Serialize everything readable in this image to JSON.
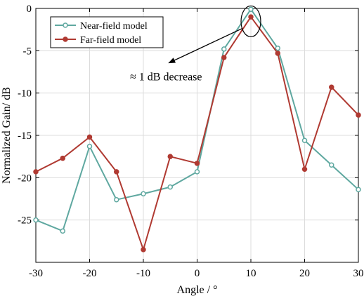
{
  "chart_data": {
    "type": "line",
    "title": "",
    "xlabel": "Angle / °",
    "ylabel": "Normalized Gain/ dB",
    "xlim": [
      -30,
      30
    ],
    "ylim": [
      -30,
      0
    ],
    "xticks": [
      -30,
      -20,
      -10,
      0,
      10,
      20,
      30
    ],
    "yticks": [
      0,
      -5,
      -10,
      -15,
      -20,
      -25
    ],
    "xtick_labels": [
      "-30",
      "-20",
      "-10",
      "0",
      "10",
      "20",
      "30"
    ],
    "ytick_labels": [
      "0",
      "-5",
      "-10",
      "-15",
      "-20",
      "-25"
    ],
    "grid": true,
    "legend_position": "top-left",
    "x": [
      -30,
      -25,
      -20,
      -15,
      -10,
      -5,
      0,
      5,
      10,
      15,
      20,
      25,
      30
    ],
    "series": [
      {
        "name": "Near-field model",
        "color": "#5fa8a0",
        "marker": "circle-open",
        "values": [
          -25.0,
          -26.3,
          -16.3,
          -22.6,
          -21.9,
          -21.1,
          -19.3,
          -4.8,
          -0.1,
          -4.7,
          -15.6,
          -18.5,
          -21.4
        ]
      },
      {
        "name": "Far-field model",
        "color": "#b03a32",
        "marker": "circle-filled",
        "values": [
          -19.3,
          -17.7,
          -15.2,
          -19.3,
          -28.5,
          -17.5,
          -18.3,
          -5.8,
          -1.0,
          -5.3,
          -19.0,
          -9.3,
          -12.6
        ]
      }
    ],
    "annotation": {
      "text": "≈ 1 dB decrease",
      "target_x": 10,
      "target_y": -0.7,
      "label_x": -5,
      "label_y": -7.6
    }
  }
}
